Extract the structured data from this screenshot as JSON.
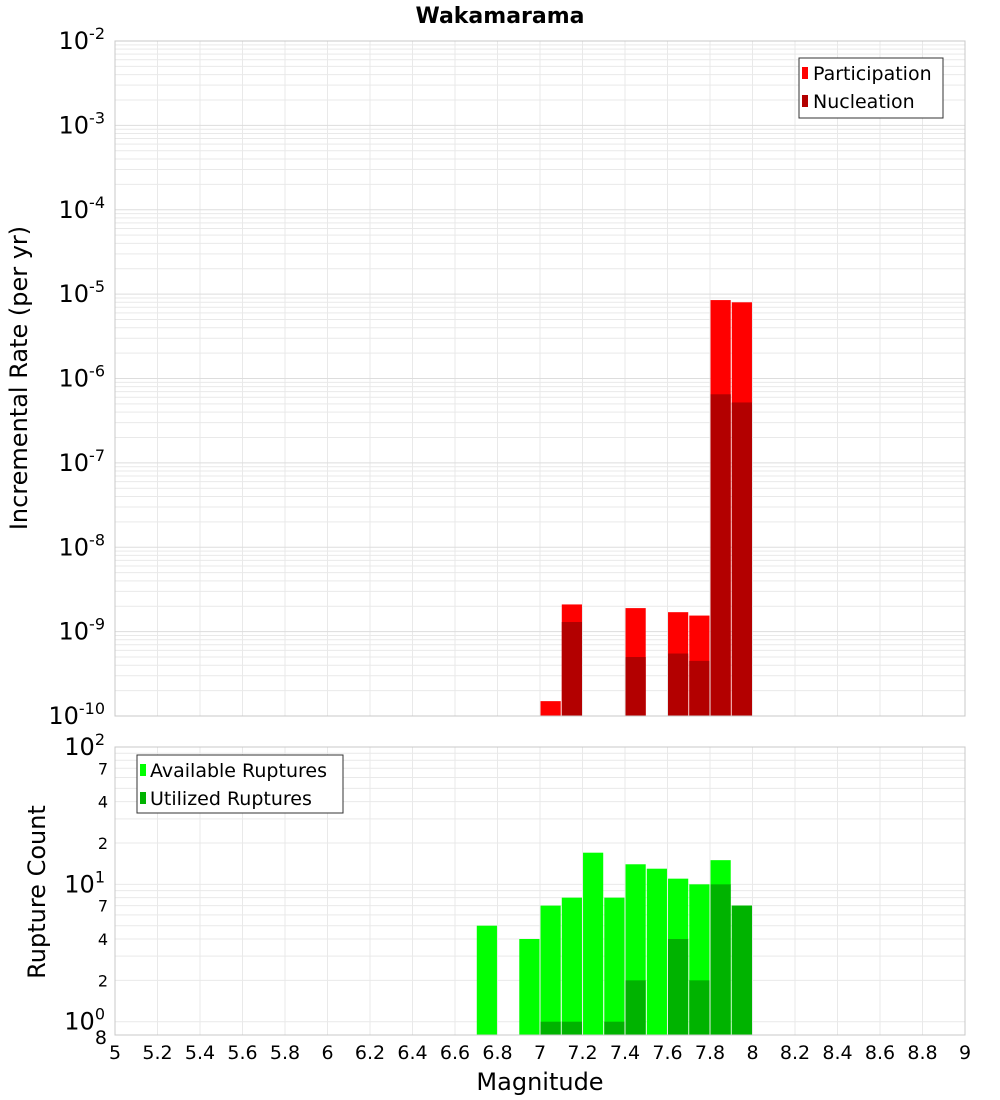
{
  "chart_data": [
    {
      "type": "bar",
      "title": "Wakamarama",
      "xlabel": "",
      "ylabel": "Incremental Rate (per yr)",
      "y_scale": "log",
      "xlim": [
        5,
        9
      ],
      "ylim": [
        1e-10,
        0.01
      ],
      "y_tick_labels": [
        {
          "base": "10",
          "exp": "-2"
        },
        {
          "base": "10",
          "exp": "-3"
        },
        {
          "base": "10",
          "exp": "-4"
        },
        {
          "base": "10",
          "exp": "-5"
        },
        {
          "base": "10",
          "exp": "-6"
        },
        {
          "base": "10",
          "exp": "-7"
        },
        {
          "base": "10",
          "exp": "-8"
        },
        {
          "base": "10",
          "exp": "-9"
        },
        {
          "base": "10",
          "exp": "-10"
        }
      ],
      "grid": true,
      "legend_position": "top-right",
      "bar_width": 0.095,
      "series": [
        {
          "name": "Participation",
          "color": "#ff0000",
          "points": [
            {
              "x": 7.05,
              "y": 1.5e-10
            },
            {
              "x": 7.15,
              "y": 2.1e-09
            },
            {
              "x": 7.45,
              "y": 1.9e-09
            },
            {
              "x": 7.65,
              "y": 1.7e-09
            },
            {
              "x": 7.75,
              "y": 1.55e-09
            },
            {
              "x": 7.85,
              "y": 8.5e-06
            },
            {
              "x": 7.95,
              "y": 8e-06
            }
          ]
        },
        {
          "name": "Nucleation",
          "color": "#b30000",
          "points": [
            {
              "x": 7.15,
              "y": 1.3e-09
            },
            {
              "x": 7.45,
              "y": 5e-10
            },
            {
              "x": 7.65,
              "y": 5.5e-10
            },
            {
              "x": 7.75,
              "y": 4.5e-10
            },
            {
              "x": 7.85,
              "y": 6.5e-07
            },
            {
              "x": 7.95,
              "y": 5.2e-07
            }
          ]
        }
      ]
    },
    {
      "type": "bar",
      "title": "",
      "xlabel": "Magnitude",
      "ylabel": "Rupture Count",
      "y_scale": "log",
      "xlim": [
        5,
        9
      ],
      "ylim": [
        0.8,
        100
      ],
      "x_tick_labels": [
        "5",
        "5.2",
        "5.4",
        "5.6",
        "5.8",
        "6",
        "6.2",
        "6.4",
        "6.6",
        "6.8",
        "7",
        "7.2",
        "7.4",
        "7.6",
        "7.8",
        "8",
        "8.2",
        "8.4",
        "8.6",
        "8.8",
        "9"
      ],
      "y_major_labels": [
        {
          "value": 100,
          "base": "10",
          "exp": "2"
        },
        {
          "value": 10,
          "base": "10",
          "exp": "1"
        },
        {
          "value": 1,
          "base": "10",
          "exp": "0"
        }
      ],
      "y_minor_labels": [
        {
          "value": 70,
          "label": "7"
        },
        {
          "value": 40,
          "label": "4"
        },
        {
          "value": 20,
          "label": "2"
        },
        {
          "value": 7,
          "label": "7"
        },
        {
          "value": 4,
          "label": "4"
        },
        {
          "value": 2,
          "label": "2"
        },
        {
          "value": 0.8,
          "label": "8"
        }
      ],
      "grid": true,
      "legend_position": "top-left",
      "bar_width": 0.095,
      "series": [
        {
          "name": "Available Ruptures",
          "color": "#00ff00",
          "points": [
            {
              "x": 6.75,
              "y": 5
            },
            {
              "x": 6.95,
              "y": 4
            },
            {
              "x": 7.05,
              "y": 7
            },
            {
              "x": 7.15,
              "y": 8
            },
            {
              "x": 7.25,
              "y": 17
            },
            {
              "x": 7.35,
              "y": 8
            },
            {
              "x": 7.45,
              "y": 14
            },
            {
              "x": 7.55,
              "y": 13
            },
            {
              "x": 7.65,
              "y": 11
            },
            {
              "x": 7.75,
              "y": 10
            },
            {
              "x": 7.85,
              "y": 15
            },
            {
              "x": 7.95,
              "y": 7
            }
          ]
        },
        {
          "name": "Utilized Ruptures",
          "color": "#00b300",
          "points": [
            {
              "x": 7.05,
              "y": 1
            },
            {
              "x": 7.15,
              "y": 1
            },
            {
              "x": 7.35,
              "y": 1
            },
            {
              "x": 7.45,
              "y": 2
            },
            {
              "x": 7.65,
              "y": 4
            },
            {
              "x": 7.75,
              "y": 2
            },
            {
              "x": 7.85,
              "y": 10
            },
            {
              "x": 7.95,
              "y": 7
            }
          ]
        }
      ]
    }
  ]
}
